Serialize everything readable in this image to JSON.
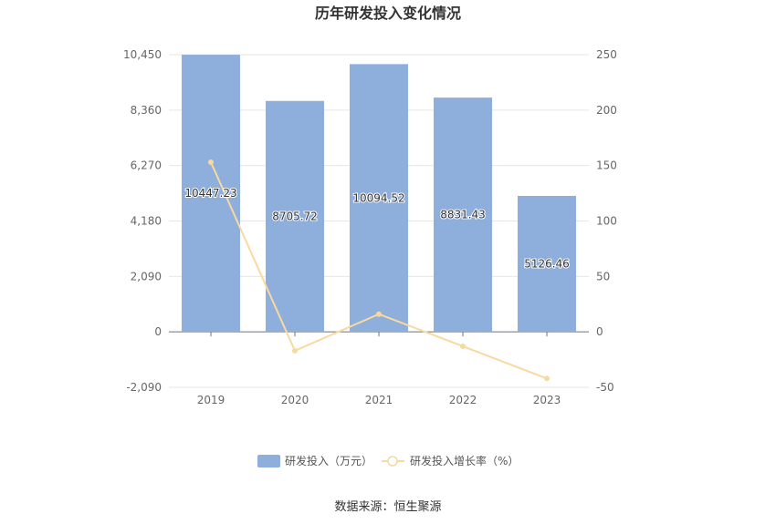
{
  "chart_data": {
    "type": "bar",
    "title": "历年研发投入变化情况",
    "categories": [
      "2019",
      "2020",
      "2021",
      "2022",
      "2023"
    ],
    "series": [
      {
        "name": "研发投入（万元）",
        "type": "bar",
        "axis": "left",
        "values": [
          10447.23,
          8705.72,
          10094.52,
          8831.43,
          5126.46
        ],
        "labels": [
          "10447.23",
          "8705.72",
          "10094.52",
          "8831.43",
          "5126.46"
        ],
        "color": "#8eaedb"
      },
      {
        "name": "研发投入增长率（%）",
        "type": "line",
        "axis": "right",
        "values": [
          153,
          -17,
          16,
          -13,
          -42
        ],
        "color": "#f8d9a0"
      }
    ],
    "y_left": {
      "lim": [
        -2090,
        10450
      ],
      "ticks": [
        -2090,
        0,
        2090,
        4180,
        6270,
        8360,
        10450
      ],
      "tick_labels": [
        "-2,090",
        "0",
        "2,090",
        "4,180",
        "6,270",
        "8,360",
        "10,450"
      ]
    },
    "y_right": {
      "lim": [
        -50,
        250
      ],
      "ticks": [
        -50,
        0,
        50,
        100,
        150,
        200,
        250
      ],
      "tick_labels": [
        "-50",
        "0",
        "50",
        "100",
        "150",
        "200",
        "250"
      ]
    },
    "grid": true,
    "legend_position": "bottom-center",
    "source": "数据来源：恒生聚源"
  }
}
